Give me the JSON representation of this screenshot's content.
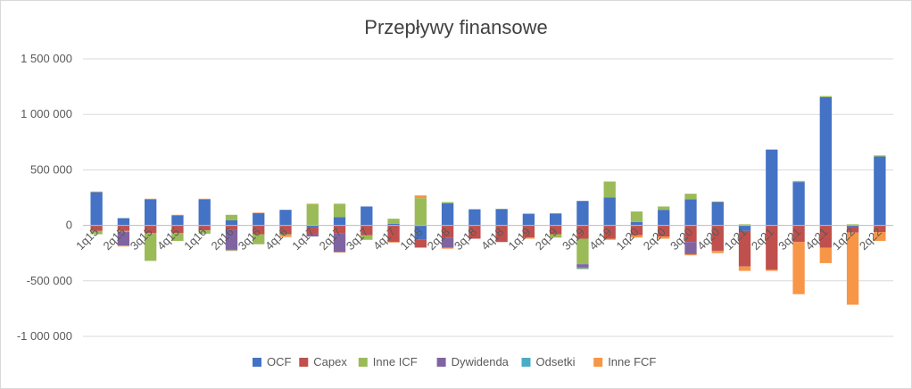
{
  "chart_data": {
    "type": "bar",
    "stacked": true,
    "title": "Przepływy finansowe",
    "ylim": [
      -1000000,
      1500000
    ],
    "yticks": [
      -1000000,
      -500000,
      0,
      500000,
      1000000,
      1500000
    ],
    "ytick_labels": [
      "-1 000 000",
      "-500 000",
      "0",
      "500 000",
      "1 000 000",
      "1 500 000"
    ],
    "grid": true,
    "legend_position": "bottom",
    "categories": [
      "1q15",
      "2q15",
      "3q15",
      "4q15",
      "1q16",
      "2q16",
      "3q16",
      "4q16",
      "1q17",
      "2q17",
      "3q17",
      "4q17",
      "1q18",
      "2q18",
      "3q18",
      "4q18",
      "1q19",
      "2q19",
      "3q19",
      "4q19",
      "1q20",
      "2q20",
      "3q20",
      "4q20",
      "1q21",
      "2q21",
      "3q21",
      "4q21",
      "1q22",
      "2q22"
    ],
    "category_labels": [
      "1q15",
      "2q15",
      "3q15",
      "4q15",
      "1q16",
      "2q16",
      "3q16",
      "4q16",
      "1q17",
      "2q17",
      "3q17",
      "4q17",
      "1q18",
      "2q18",
      "3q18",
      "4q18",
      "1q19",
      "2q19",
      "3q19",
      "4q19",
      "1q20",
      "2q20",
      "3q20",
      "4q20",
      "1q21",
      "2q21",
      "3q21",
      "4q21",
      "1q22",
      "2q22"
    ],
    "series": [
      {
        "name": "OCF",
        "color": "#4472c4",
        "values": [
          300000,
          65000,
          235000,
          90000,
          235000,
          45000,
          110000,
          140000,
          -20000,
          75000,
          170000,
          15000,
          -130000,
          200000,
          145000,
          145000,
          105000,
          105000,
          220000,
          250000,
          30000,
          140000,
          235000,
          210000,
          -50000,
          680000,
          390000,
          1155000,
          -15000,
          620000
        ]
      },
      {
        "name": "Capex",
        "color": "#c0504d",
        "values": [
          -50000,
          -50000,
          -70000,
          -70000,
          -45000,
          -40000,
          -80000,
          -80000,
          -60000,
          -70000,
          -90000,
          -150000,
          -70000,
          -110000,
          -120000,
          -150000,
          -110000,
          -80000,
          -120000,
          -120000,
          -90000,
          -100000,
          -150000,
          -230000,
          -320000,
          -400000,
          -150000,
          -200000,
          -50000,
          -60000
        ]
      },
      {
        "name": "Inne ICF",
        "color": "#9bbb59",
        "values": [
          -30000,
          -10000,
          -250000,
          -70000,
          -30000,
          50000,
          -90000,
          -10000,
          190000,
          120000,
          -40000,
          45000,
          245000,
          10000,
          0,
          5000,
          0,
          -30000,
          -230000,
          145000,
          95000,
          30000,
          50000,
          5000,
          10000,
          5000,
          10000,
          10000,
          10000,
          10000
        ]
      },
      {
        "name": "Dywidenda",
        "color": "#8064a2",
        "values": [
          0,
          -120000,
          0,
          0,
          0,
          -180000,
          0,
          0,
          -20000,
          -170000,
          0,
          0,
          0,
          -90000,
          0,
          0,
          0,
          0,
          -30000,
          0,
          0,
          0,
          -110000,
          0,
          0,
          0,
          0,
          0,
          0,
          0
        ]
      },
      {
        "name": "Odsetki",
        "color": "#4bacc6",
        "values": [
          0,
          0,
          0,
          0,
          0,
          -5000,
          0,
          0,
          0,
          0,
          0,
          0,
          0,
          0,
          0,
          0,
          0,
          0,
          -10000,
          0,
          0,
          0,
          0,
          0,
          0,
          0,
          0,
          0,
          0,
          0
        ]
      },
      {
        "name": "Inne FCF",
        "color": "#f79646",
        "values": [
          5000,
          -10000,
          5000,
          5000,
          5000,
          -5000,
          5000,
          -15000,
          5000,
          -5000,
          0,
          -5000,
          25000,
          -10000,
          0,
          0,
          -10000,
          5000,
          -5000,
          -10000,
          -20000,
          -20000,
          -10000,
          -20000,
          -40000,
          -10000,
          -470000,
          -140000,
          -650000,
          -80000
        ]
      }
    ]
  }
}
